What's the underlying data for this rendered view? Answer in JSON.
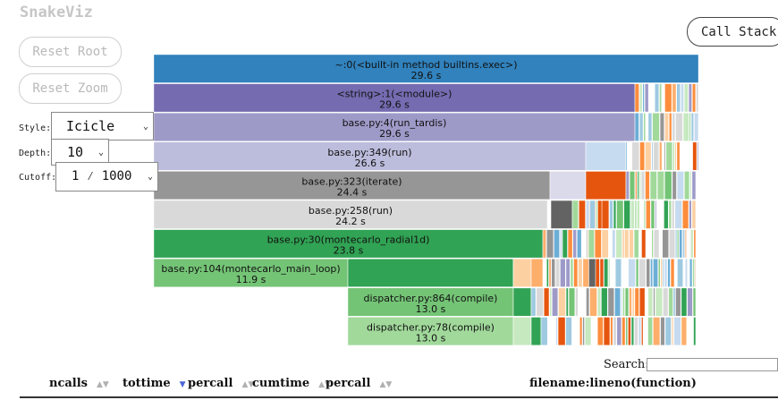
{
  "app": {
    "title": "SnakeViz"
  },
  "buttons": {
    "reset_root": "Reset Root",
    "reset_zoom": "Reset Zoom",
    "call_stack": "Call Stack"
  },
  "controls": {
    "style_label": "Style:",
    "style_value": "Icicle",
    "depth_label": "Depth:",
    "depth_value": "10",
    "cutoff_label": "Cutoff:",
    "cutoff_value": "1 ⁄ 1000"
  },
  "icons": {
    "dropdown": "chevron-down-icon",
    "sort": "sort-arrows-icon"
  },
  "colors": {
    "blue": "#3182bd",
    "purple_dark": "#756bb1",
    "purple_mid": "#9e9ac8",
    "purple_light": "#bcbddc",
    "purple_pale": "#dadaeb",
    "gray_dark": "#636363",
    "gray_mid": "#969696",
    "gray_light": "#d9d9d9",
    "green_dark": "#31a354",
    "green_mid": "#74c476",
    "green_light": "#a1d99b",
    "green_pale": "#c7e9c0",
    "orange_dark": "#e6550d",
    "orange_mid": "#fd8d3c",
    "orange_light": "#fdae6b",
    "orange_pale": "#fdd0a2",
    "blue_mid": "#6baed6",
    "blue_light": "#9ecae1",
    "blue_pale": "#c6dbef"
  },
  "icicle": {
    "nodes": [
      {
        "name": "~:0(<built-in method builtins.exec>)",
        "time": "29.6 s"
      },
      {
        "name": "<string>:1(<module>)",
        "time": "29.6 s"
      },
      {
        "name": "base.py:4(run_tardis)",
        "time": "29.6 s"
      },
      {
        "name": "base.py:349(run)",
        "time": "26.6 s"
      },
      {
        "name": "base.py:323(iterate)",
        "time": "24.4 s"
      },
      {
        "name": "base.py:258(run)",
        "time": "24.2 s"
      },
      {
        "name": "base.py:30(montecarlo_radial1d)",
        "time": "23.8 s"
      },
      {
        "name": "base.py:104(montecarlo_main_loop)",
        "time": "11.9 s"
      },
      {
        "name": "dispatcher.py:864(compile)",
        "time": "13.0 s"
      },
      {
        "name": "dispatcher.py:78(compile)",
        "time": "13.0 s"
      }
    ]
  },
  "search": {
    "label": "Search:",
    "value": ""
  },
  "table": {
    "columns": [
      {
        "label": "ncalls",
        "sorted": false
      },
      {
        "label": "tottime",
        "sorted": true
      },
      {
        "label": "percall",
        "sorted": false
      },
      {
        "label": "cumtime",
        "sorted": false
      },
      {
        "label": "percall",
        "sorted": false
      },
      {
        "label": "filename:lineno(function)",
        "sorted": false
      }
    ]
  }
}
